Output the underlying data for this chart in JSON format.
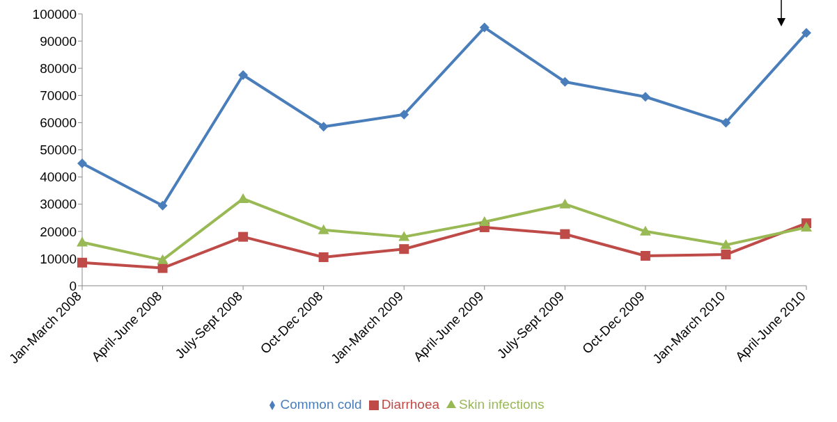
{
  "chart_data": {
    "type": "line",
    "categories": [
      "Jan-March 2008",
      "April-June 2008",
      "July-Sept 2008",
      "Oct-Dec 2008",
      "Jan-March 2009",
      "April-June 2009",
      "July-Sept 2009",
      "Oct-Dec 2009",
      "Jan-March 2010",
      "April-June 2010"
    ],
    "series": [
      {
        "name": "Common cold",
        "color": "#4a7ebb",
        "marker": "diamond",
        "values": [
          45000,
          29500,
          77500,
          58500,
          63000,
          95000,
          75000,
          69500,
          60000,
          93000
        ]
      },
      {
        "name": "Diarrhoea",
        "color": "#be4b48",
        "marker": "square",
        "values": [
          8500,
          6500,
          18000,
          10500,
          13500,
          21500,
          19000,
          11000,
          11500,
          23000
        ]
      },
      {
        "name": "Skin infections",
        "color": "#98b954",
        "marker": "triangle",
        "values": [
          16000,
          9500,
          32000,
          20500,
          18000,
          23500,
          30000,
          20000,
          15000,
          21500
        ]
      }
    ],
    "ylim": [
      0,
      100000
    ],
    "yticks": [
      0,
      10000,
      20000,
      30000,
      40000,
      50000,
      60000,
      70000,
      80000,
      90000,
      100000
    ],
    "grid": false,
    "legend": "bottom"
  }
}
